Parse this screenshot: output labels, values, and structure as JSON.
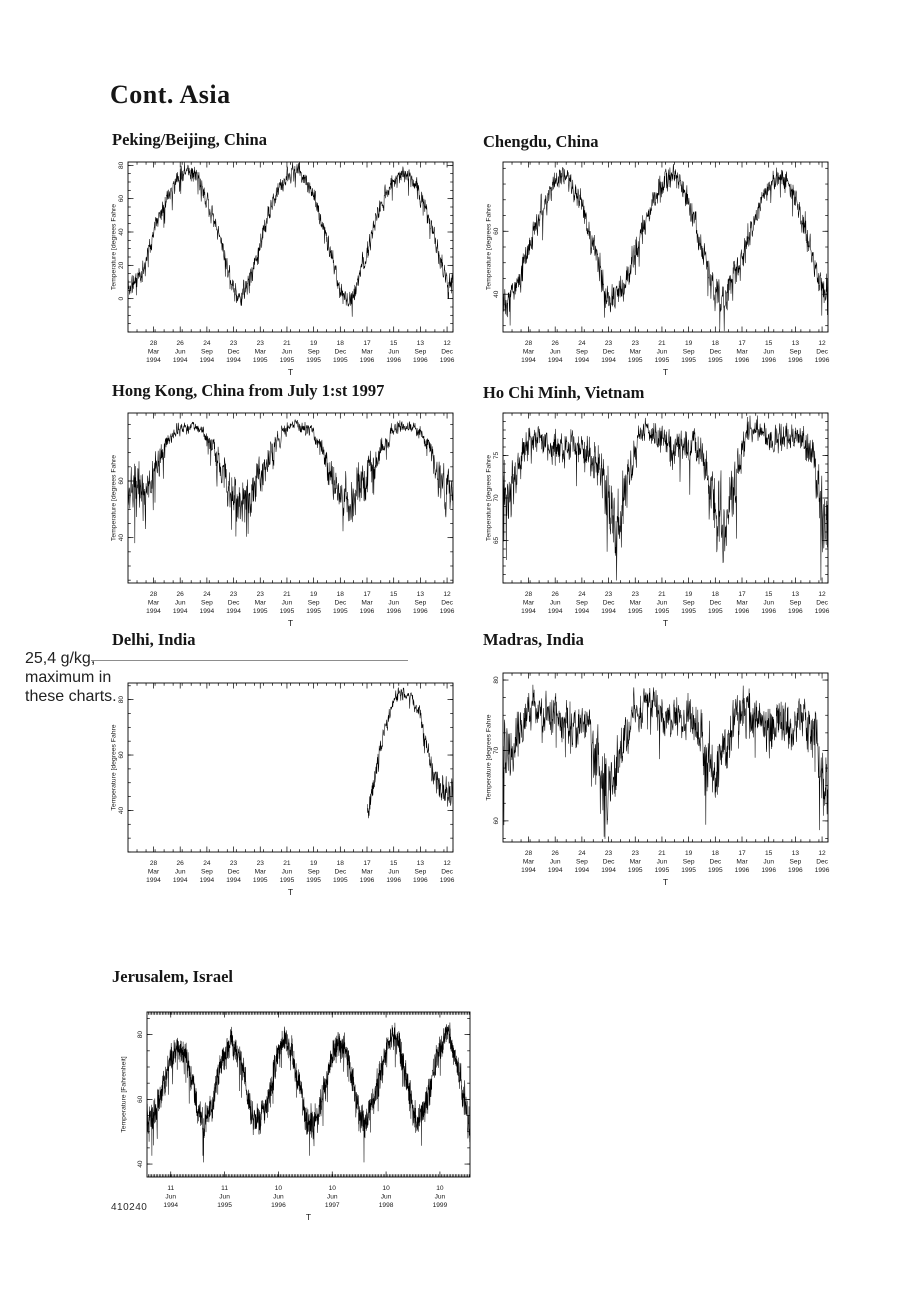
{
  "page": {
    "title": "Cont. Asia",
    "annotation": {
      "line1": "25,4 g/kg,",
      "line2": "maximum in",
      "line3": "these charts."
    },
    "footer_code": "410240",
    "colors": {
      "background": "#ffffff",
      "ink": "#161616",
      "plot_line": "#000000",
      "leader_line": "#8d8d8d"
    }
  },
  "x_axes": {
    "quarterly": {
      "domain_days": 1096,
      "minor_step_days": 30.44,
      "label_days": [
        86,
        176,
        266,
        356,
        446,
        536,
        626,
        716,
        806,
        896,
        986,
        1076
      ],
      "labels": [
        [
          "28",
          "Mar",
          "1994"
        ],
        [
          "26",
          "Jun",
          "1994"
        ],
        [
          "24",
          "Sep",
          "1994"
        ],
        [
          "23",
          "Dec",
          "1994"
        ],
        [
          "23",
          "Mar",
          "1995"
        ],
        [
          "21",
          "Jun",
          "1995"
        ],
        [
          "19",
          "Sep",
          "1995"
        ],
        [
          "18",
          "Dec",
          "1995"
        ],
        [
          "17",
          "Mar",
          "1996"
        ],
        [
          "15",
          "Jun",
          "1996"
        ],
        [
          "13",
          "Sep",
          "1996"
        ],
        [
          "12",
          "Dec",
          "1996"
        ]
      ]
    },
    "yearly": {
      "domain_days": 2190,
      "minor_step_days": 10.4,
      "label_days": [
        161,
        526,
        891,
        1256,
        1621,
        1986
      ],
      "labels": [
        [
          "11",
          "Jun",
          "1994"
        ],
        [
          "11",
          "Jun",
          "1995"
        ],
        [
          "10",
          "Jun",
          "1996"
        ],
        [
          "10",
          "Jun",
          "1997"
        ],
        [
          "10",
          "Jun",
          "1998"
        ],
        [
          "10",
          "Jun",
          "1999"
        ]
      ]
    }
  },
  "chart_data": [
    {
      "type": "line",
      "title": "Peking/Beijing, China",
      "ylabel": "Temperature [degrees Fahre",
      "xlabel": "T",
      "x_axis": "quarterly",
      "ylim": [
        -20,
        82
      ],
      "yticks": [
        0,
        20,
        40,
        60,
        80
      ],
      "y_minor_step": 5,
      "monthly_values": [
        8,
        14,
        33,
        50,
        63,
        73,
        78,
        74,
        62,
        47,
        30,
        8,
        0,
        12,
        30,
        49,
        63,
        72,
        77,
        74,
        62,
        46,
        27,
        5,
        -2,
        10,
        28,
        48,
        62,
        72,
        77,
        73,
        61,
        45,
        26,
        8
      ],
      "noise_top": 6,
      "noise_bottom": 7,
      "seed": 11
    },
    {
      "type": "line",
      "title": "Chengdu, China",
      "ylabel": "Temperature [degrees Fahre",
      "xlabel": "T",
      "x_axis": "quarterly",
      "ylim": [
        28,
        82
      ],
      "yticks": [
        40,
        60
      ],
      "y_minor_step": 5,
      "monthly_values": [
        40,
        42,
        51,
        60,
        68,
        74,
        77,
        76,
        69,
        60,
        50,
        41,
        38,
        44,
        52,
        61,
        68,
        74,
        78,
        76,
        70,
        60,
        50,
        40,
        39,
        44,
        52,
        61,
        68,
        74,
        77,
        76,
        70,
        60,
        49,
        41
      ],
      "noise_top": 4,
      "noise_bottom": 5.5,
      "seed": 22
    },
    {
      "type": "line",
      "title": "Hong Kong, China from July 1:st 1997",
      "ylabel": "Temperature [degrees Fahre",
      "xlabel": "T",
      "x_axis": "quarterly",
      "ylim": [
        24,
        84
      ],
      "yticks": [
        40,
        60
      ],
      "y_minor_step": 5,
      "monthly_values": [
        56,
        55,
        60,
        68,
        74,
        78,
        79,
        79,
        77,
        71,
        63,
        55,
        52,
        55,
        61,
        68,
        74,
        78,
        80,
        79,
        77,
        70,
        62,
        54,
        52,
        55,
        61,
        68,
        74,
        78,
        79,
        79,
        77,
        70,
        61,
        54
      ],
      "noise_top": 2,
      "noise_bottom": 10,
      "seed": 33
    },
    {
      "type": "line",
      "title": "Ho Chi Minh, Vietnam",
      "ylabel": "Temperature [degrees Fahre",
      "xlabel": "T",
      "x_axis": "quarterly",
      "ylim": [
        60,
        80
      ],
      "yticks": [
        65,
        70,
        75
      ],
      "y_minor_step": 1,
      "monthly_values": [
        70,
        73,
        76,
        77,
        77,
        76,
        76,
        76,
        76,
        75,
        73,
        70,
        66,
        71,
        75,
        78,
        78,
        77,
        76,
        76,
        76,
        76,
        74,
        69,
        67,
        71,
        76,
        78,
        78,
        77,
        77,
        77,
        77,
        76,
        74,
        67
      ],
      "noise_top": 1.5,
      "noise_bottom": 5.5,
      "seed": 44
    },
    {
      "type": "line",
      "title": "Delhi, India",
      "ylabel": "Temperature [degrees Fahre",
      "xlabel": "T",
      "x_axis": "quarterly",
      "ylim": [
        25,
        86
      ],
      "yticks": [
        40,
        60,
        80
      ],
      "y_minor_step": 5,
      "monthly_values": [
        null,
        null,
        null,
        null,
        null,
        null,
        null,
        null,
        null,
        null,
        null,
        null,
        null,
        null,
        null,
        null,
        null,
        null,
        null,
        null,
        null,
        null,
        null,
        null,
        null,
        null,
        40,
        55,
        70,
        80,
        83,
        80,
        73,
        57,
        48,
        46
      ],
      "noise_top": 2.5,
      "noise_bottom": 6,
      "seed": 55
    },
    {
      "type": "line",
      "title": "Madras, India",
      "ylabel": "Temperature [degrees Fahre",
      "xlabel": "T",
      "x_axis": "quarterly",
      "ylim": [
        57,
        81
      ],
      "yticks": [
        60,
        70,
        80
      ],
      "y_minor_step": 2.5,
      "monthly_values": [
        70,
        72,
        75,
        77,
        75,
        74,
        74,
        74,
        74,
        73,
        68,
        64,
        67,
        71,
        75,
        76,
        77,
        75,
        75,
        75,
        75,
        74,
        67,
        67,
        70,
        74,
        76,
        75,
        74,
        73,
        74,
        73,
        74,
        74,
        72,
        65
      ],
      "noise_top": 2.5,
      "noise_bottom": 6,
      "seed": 66
    },
    {
      "type": "line",
      "title": "Jerusalem, Israel",
      "ylabel": "Temperature [Fahrenheit]",
      "xlabel": "T",
      "x_axis": "yearly",
      "ylim": [
        36,
        87
      ],
      "yticks": [
        40,
        60,
        80
      ],
      "y_minor_step": 5,
      "monthly_values": [
        55,
        54,
        58,
        63,
        69,
        73,
        75,
        76,
        73,
        69,
        62,
        55,
        52,
        55,
        59,
        64,
        70,
        74,
        77,
        76,
        74,
        69,
        61,
        54,
        53,
        55,
        58,
        63,
        70,
        75,
        78,
        76,
        73,
        68,
        61,
        53,
        52,
        54,
        58,
        64,
        70,
        74,
        77,
        76,
        73,
        68,
        60,
        53,
        53,
        55,
        59,
        65,
        71,
        76,
        80,
        78,
        74,
        68,
        62,
        55,
        54,
        56,
        60,
        66,
        72,
        77,
        81,
        79,
        74,
        69,
        62,
        53
      ],
      "noise_top": 4.5,
      "noise_bottom": 5.5,
      "seed": 77
    }
  ]
}
